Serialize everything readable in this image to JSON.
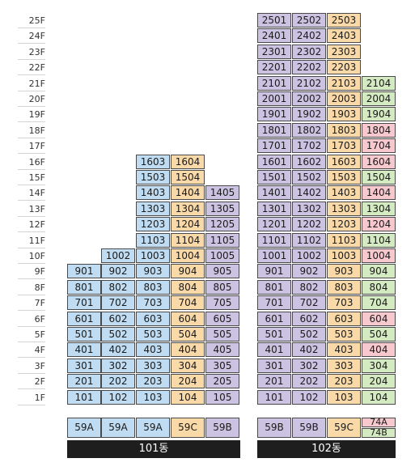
{
  "colors": {
    "59A": "#bfdcf2",
    "59C": "#fad9a8",
    "59B": "#ccc2e2",
    "74A": "#f7c9cf",
    "74B": "#d4eac0"
  },
  "floor_labels": [
    "25F",
    "24F",
    "23F",
    "22F",
    "21F",
    "20F",
    "19F",
    "18F",
    "17F",
    "16F",
    "15F",
    "14F",
    "13F",
    "12F",
    "11F",
    "10F",
    "9F",
    "8F",
    "7F",
    "6F",
    "5F",
    "4F",
    "3F",
    "2F",
    "1F"
  ],
  "buildings": [
    {
      "name": "101동",
      "lines": [
        {
          "type": "59A",
          "max_floor": 9
        },
        {
          "type": "59A",
          "max_floor": 10
        },
        {
          "type": "59A",
          "max_floor": 16
        },
        {
          "type": "59C",
          "max_floor": 16
        },
        {
          "type": "59B",
          "max_floor": 14
        }
      ]
    },
    {
      "name": "102동",
      "lines": [
        {
          "type": "59B",
          "max_floor": 25
        },
        {
          "type": "59B",
          "max_floor": 25
        },
        {
          "type": "59C",
          "max_floor": 25
        },
        {
          "type": "74",
          "max_floor": 21
        }
      ]
    }
  ],
  "line4_102_types": [
    "74B",
    "74B",
    "74B",
    "74A",
    "74B",
    "74A",
    "74B",
    "74B",
    "74B",
    "74A",
    "74B",
    "74A",
    "74B",
    "74A",
    "74B",
    "74A",
    "74A",
    "74A",
    "74B",
    "74B",
    "74B"
  ],
  "type_row": [
    {
      "labels": [
        "59A"
      ]
    },
    {
      "labels": [
        "59A"
      ]
    },
    {
      "labels": [
        "59A"
      ]
    },
    {
      "labels": [
        "59C"
      ]
    },
    {
      "labels": [
        "59B"
      ]
    },
    {
      "labels": [
        "59B"
      ]
    },
    {
      "labels": [
        "59B"
      ]
    },
    {
      "labels": [
        "59C"
      ]
    },
    {
      "labels": [
        "74A",
        "74B"
      ]
    }
  ]
}
